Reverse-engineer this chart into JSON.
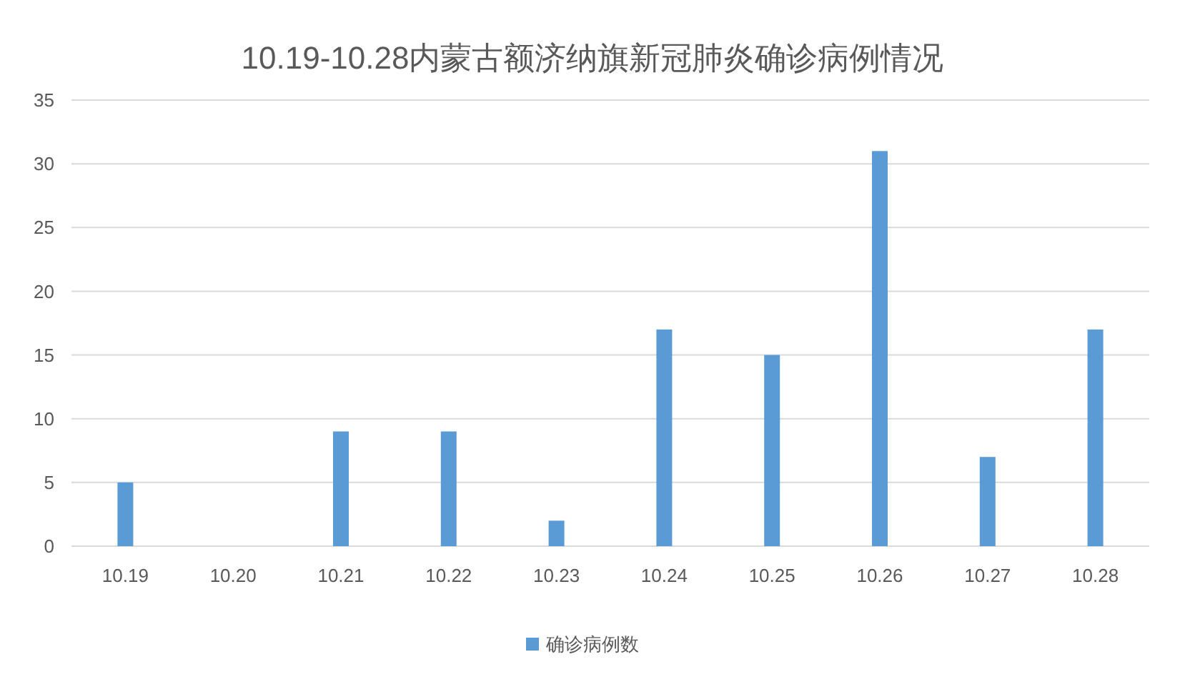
{
  "chart_data": {
    "type": "bar",
    "title": "10.19-10.28内蒙古额济纳旗新冠肺炎确诊病例情况",
    "categories": [
      "10.19",
      "10.20",
      "10.21",
      "10.22",
      "10.23",
      "10.24",
      "10.25",
      "10.26",
      "10.27",
      "10.28"
    ],
    "series": [
      {
        "name": "确诊病例数",
        "color": "#5b9bd5",
        "values": [
          5,
          0,
          9,
          9,
          2,
          17,
          15,
          31,
          7,
          17
        ]
      }
    ],
    "ylim": [
      0,
      35
    ],
    "yticks": [
      0,
      5,
      10,
      15,
      20,
      25,
      30,
      35
    ],
    "grid": "y",
    "legend": "bottom"
  }
}
